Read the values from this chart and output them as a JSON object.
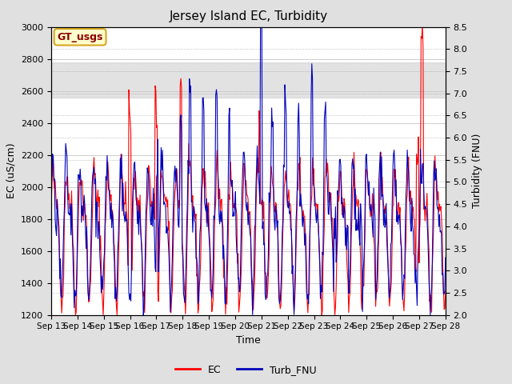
{
  "title": "Jersey Island EC, Turbidity",
  "xlabel": "Time",
  "ylabel_left": "EC (uS/cm)",
  "ylabel_right": "Turbidity (FNU)",
  "x_tick_labels": [
    "Sep 13",
    "Sep 14",
    "Sep 15",
    "Sep 16",
    "Sep 17",
    "Sep 18",
    "Sep 19",
    "Sep 20",
    "Sep 21",
    "Sep 22",
    "Sep 23",
    "Sep 24",
    "Sep 25",
    "Sep 26",
    "Sep 27",
    "Sep 28"
  ],
  "ylim_left": [
    1200,
    3000
  ],
  "ylim_right": [
    2.0,
    8.5
  ],
  "yticks_left": [
    1200,
    1400,
    1600,
    1800,
    2000,
    2200,
    2400,
    2600,
    2800,
    3000
  ],
  "yticks_right": [
    2.0,
    2.5,
    3.0,
    3.5,
    4.0,
    4.5,
    5.0,
    5.5,
    6.0,
    6.5,
    7.0,
    7.5,
    8.0,
    8.5
  ],
  "ec_color": "#FF0000",
  "turb_color": "#0000BB",
  "background_color": "#E0E0E0",
  "plot_bg_color": "#FFFFFF",
  "shaded_band_ec": [
    2560,
    2780
  ],
  "annotation_text": "GT_usgs",
  "annotation_box_color": "#FFFFCC",
  "annotation_text_color": "#8B0000",
  "annotation_border_color": "#DAA520",
  "legend_items": [
    "EC",
    "Turb_FNU"
  ],
  "n_points": 600,
  "seed": 42,
  "figsize": [
    6.4,
    4.8
  ],
  "dpi": 100
}
